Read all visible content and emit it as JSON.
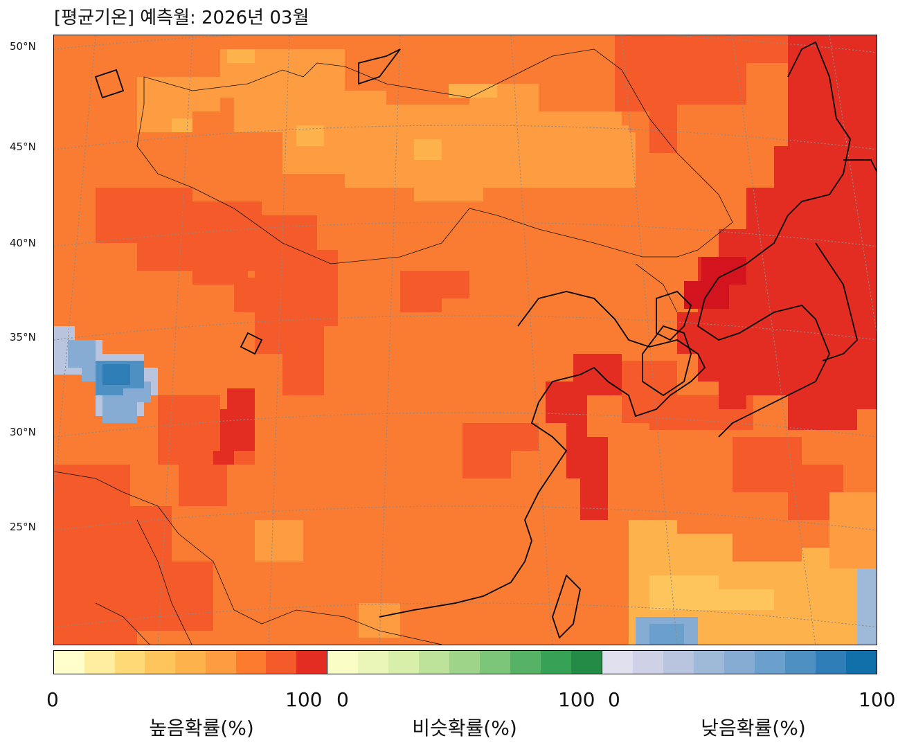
{
  "title": "[평균기온] 예측월: 2026년 03월",
  "lat_labels": [
    "50°N",
    "45°N",
    "40°N",
    "35°N",
    "30°N",
    "25°N"
  ],
  "colorbars": [
    {
      "label": "높음확률(%)",
      "min": "0",
      "max": "100",
      "colors": [
        "#ffffcc",
        "#ffeda0",
        "#fed976",
        "#fec55c",
        "#feb24c",
        "#fd9c41",
        "#fd7b2f",
        "#f55a2a",
        "#e42d22"
      ]
    },
    {
      "label": "비슷확률(%)",
      "min": "0",
      "max": "100",
      "colors": [
        "#fafdc6",
        "#eaf6b8",
        "#d7efa8",
        "#bde29a",
        "#9ed489",
        "#7cc67a",
        "#56b365",
        "#37a155",
        "#238b45"
      ]
    },
    {
      "label": "낮음확률(%)",
      "min": "0",
      "max": "100",
      "colors": [
        "#e0e0ee",
        "#cfd1e6",
        "#b9c5df",
        "#9fbad8",
        "#86acd3",
        "#6ca0cc",
        "#4e90c2",
        "#2f7eb8",
        "#1170aa"
      ]
    }
  ],
  "colors": {
    "high_dominant": "#f97c32",
    "frame": "#000000"
  }
}
